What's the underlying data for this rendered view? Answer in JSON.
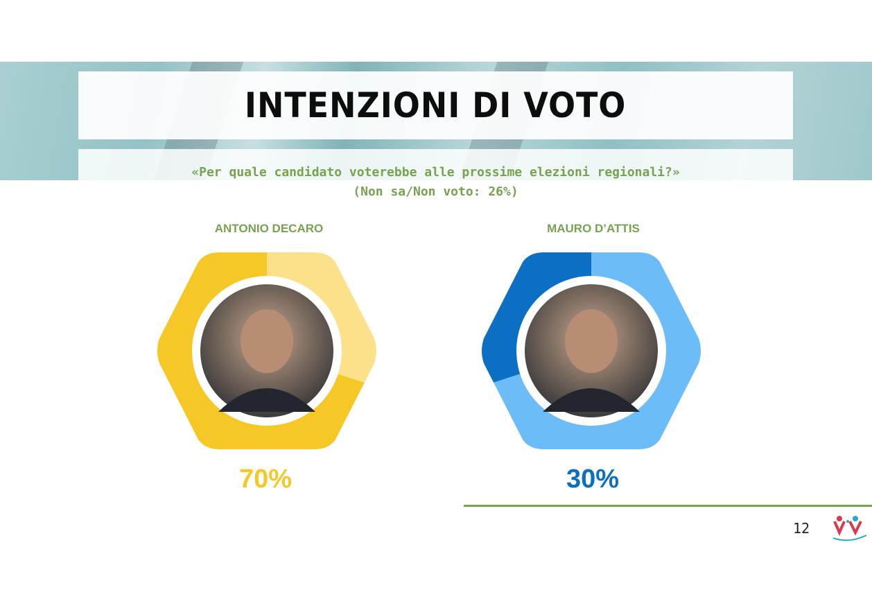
{
  "header": {
    "title": "INTENZIONI DI VOTO"
  },
  "question": {
    "line1": "«Per quale candidato voterebbe alle prossime elezioni regionali?»",
    "line2": "(Non sa/Non voto: 26%)"
  },
  "footer": {
    "page_number": "12"
  },
  "colors": {
    "accent_green": "#76a34f",
    "decaro_main": "#f5c827",
    "decaro_light": "#fbe18a",
    "dattis_main": "#0b70c4",
    "dattis_light": "#6cbdf7"
  },
  "chart_data": [
    {
      "type": "pie",
      "style": "donut",
      "title": "ANTONIO DECARO",
      "label": "70%",
      "value": 70,
      "remainder": 30,
      "main_color": "#f5c827",
      "rest_color": "#fbe18a"
    },
    {
      "type": "pie",
      "style": "donut",
      "title": "MAURO D’ATTIS",
      "label": "30%",
      "value": 30,
      "remainder": 70,
      "main_color": "#0b70c4",
      "rest_color": "#6cbdf7"
    }
  ]
}
